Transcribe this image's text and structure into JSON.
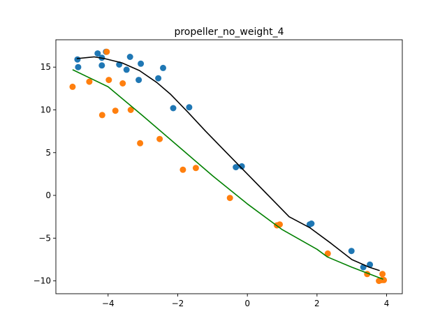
{
  "chart_data": {
    "type": "scatter",
    "title": "propeller_no_weight_4",
    "xlabel": "",
    "ylabel": "",
    "xlim": [
      -5.5,
      4.45
    ],
    "ylim": [
      -11.5,
      18.2
    ],
    "xticks": [
      -4,
      -2,
      0,
      2,
      4
    ],
    "xtick_labels": [
      "−4",
      "−2",
      "0",
      "2",
      "4"
    ],
    "yticks": [
      -10,
      -5,
      0,
      5,
      10,
      15
    ],
    "ytick_labels": [
      "−10",
      "−5",
      "0",
      "5",
      "10",
      "15"
    ],
    "grid": false,
    "scatter_series": [
      {
        "color": "#1f77b4",
        "points": [
          [
            -4.88,
            15.9
          ],
          [
            -4.86,
            15.0
          ],
          [
            -4.3,
            16.6
          ],
          [
            -4.18,
            16.1
          ],
          [
            -4.18,
            15.2
          ],
          [
            -4.06,
            16.8
          ],
          [
            -3.68,
            15.3
          ],
          [
            -3.47,
            14.7
          ],
          [
            -3.37,
            16.2
          ],
          [
            -3.12,
            13.5
          ],
          [
            -3.06,
            15.4
          ],
          [
            -2.56,
            13.7
          ],
          [
            -2.42,
            14.9
          ],
          [
            -2.13,
            10.2
          ],
          [
            -1.67,
            10.3
          ],
          [
            -0.33,
            3.3
          ],
          [
            -0.16,
            3.4
          ],
          [
            1.79,
            -3.4
          ],
          [
            1.84,
            -3.3
          ],
          [
            2.99,
            -6.5
          ],
          [
            3.33,
            -8.4
          ],
          [
            3.52,
            -8.1
          ]
        ]
      },
      {
        "color": "#ff7f0e",
        "points": [
          [
            -5.02,
            12.7
          ],
          [
            -4.54,
            13.3
          ],
          [
            -4.17,
            9.4
          ],
          [
            -4.04,
            16.8
          ],
          [
            -3.98,
            13.5
          ],
          [
            -3.79,
            9.9
          ],
          [
            -3.58,
            13.1
          ],
          [
            -3.35,
            10.0
          ],
          [
            -3.08,
            6.1
          ],
          [
            -2.52,
            6.6
          ],
          [
            -1.85,
            3.0
          ],
          [
            -1.48,
            3.2
          ],
          [
            -0.5,
            -0.3
          ],
          [
            0.85,
            -3.5
          ],
          [
            0.93,
            -3.4
          ],
          [
            2.31,
            -6.8
          ],
          [
            3.44,
            -9.2
          ],
          [
            3.78,
            -10.0
          ],
          [
            3.86,
            -9.9
          ],
          [
            3.88,
            -9.2
          ],
          [
            3.92,
            -9.9
          ]
        ]
      }
    ],
    "line_series": [
      {
        "color": "#000000",
        "points": [
          [
            -4.9,
            16.0
          ],
          [
            -4.4,
            16.2
          ],
          [
            -4.1,
            16.0
          ],
          [
            -3.6,
            15.5
          ],
          [
            -3.1,
            14.6
          ],
          [
            -2.6,
            13.2
          ],
          [
            -2.2,
            11.8
          ],
          [
            -1.7,
            9.7
          ],
          [
            -1.2,
            7.5
          ],
          [
            -0.6,
            5.0
          ],
          [
            0.0,
            2.5
          ],
          [
            0.6,
            0.0
          ],
          [
            1.2,
            -2.5
          ],
          [
            1.8,
            -3.8
          ],
          [
            2.4,
            -5.6
          ],
          [
            3.0,
            -7.5
          ],
          [
            3.5,
            -8.4
          ],
          [
            3.8,
            -8.8
          ]
        ]
      },
      {
        "color": "#008000",
        "points": [
          [
            -5.02,
            14.7
          ],
          [
            -4.0,
            12.7
          ],
          [
            -3.0,
            9.3
          ],
          [
            -2.0,
            5.8
          ],
          [
            -1.0,
            2.3
          ],
          [
            0.0,
            -1.0
          ],
          [
            1.0,
            -4.0
          ],
          [
            2.0,
            -6.3
          ],
          [
            2.3,
            -7.2
          ],
          [
            3.0,
            -8.4
          ],
          [
            3.9,
            -9.8
          ]
        ]
      }
    ]
  }
}
